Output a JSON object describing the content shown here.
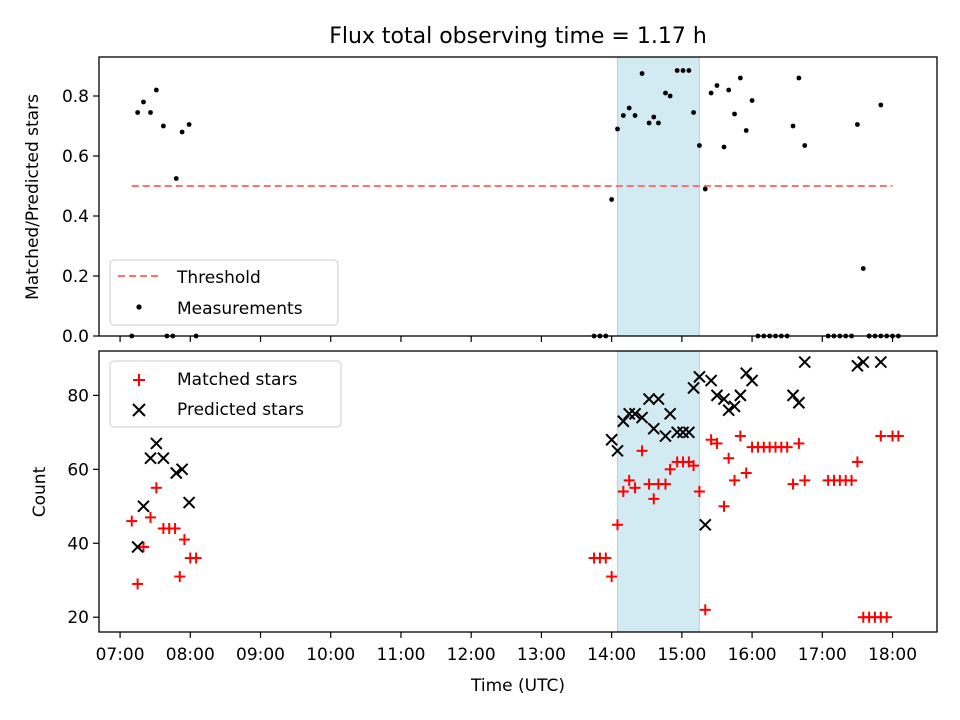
{
  "chart_data": [
    {
      "type": "scatter",
      "title": "Flux total observing time = 1.17 h",
      "ylabel": "Matched/Predicted stars",
      "xlim": [
        "06:42",
        "18:38"
      ],
      "ylim": [
        0,
        0.93
      ],
      "yticks": [
        0.0,
        0.2,
        0.4,
        0.6,
        0.8
      ],
      "ytick_labels": [
        "0.0",
        "0.2",
        "0.4",
        "0.6",
        "0.8"
      ],
      "highlight_span": [
        "14:05",
        "15:15"
      ],
      "legend": {
        "position": "lower-left",
        "entries": [
          "Threshold",
          "Measurements"
        ]
      },
      "colors": {
        "threshold": "#ff7070",
        "measurements": "#000000",
        "span": "#add8e6"
      },
      "threshold": {
        "name": "Threshold",
        "y": 0.5,
        "x": [
          "07:10",
          "18:00"
        ]
      },
      "series": [
        {
          "name": "Measurements",
          "points": [
            [
              "07:10",
              0.0
            ],
            [
              "07:15",
              0.745
            ],
            [
              "07:20",
              0.78
            ],
            [
              "07:26",
              0.745
            ],
            [
              "07:31",
              0.82
            ],
            [
              "07:37",
              0.7
            ],
            [
              "07:40",
              0.0
            ],
            [
              "07:45",
              0.0
            ],
            [
              "07:48",
              0.525
            ],
            [
              "07:53",
              0.68
            ],
            [
              "07:59",
              0.705
            ],
            [
              "08:05",
              0.0
            ],
            [
              "13:45",
              0.0
            ],
            [
              "13:50",
              0.0
            ],
            [
              "13:55",
              0.0
            ],
            [
              "14:00",
              0.455
            ],
            [
              "14:05",
              0.69
            ],
            [
              "14:10",
              0.735
            ],
            [
              "14:15",
              0.76
            ],
            [
              "14:20",
              0.735
            ],
            [
              "14:26",
              0.875
            ],
            [
              "14:32",
              0.71
            ],
            [
              "14:36",
              0.73
            ],
            [
              "14:40",
              0.71
            ],
            [
              "14:46",
              0.81
            ],
            [
              "14:50",
              0.8
            ],
            [
              "14:56",
              0.885
            ],
            [
              "15:01",
              0.885
            ],
            [
              "15:06",
              0.885
            ],
            [
              "15:10",
              0.745
            ],
            [
              "15:15",
              0.635
            ],
            [
              "15:20",
              0.49
            ],
            [
              "15:25",
              0.81
            ],
            [
              "15:30",
              0.835
            ],
            [
              "15:36",
              0.63
            ],
            [
              "15:40",
              0.82
            ],
            [
              "15:45",
              0.74
            ],
            [
              "15:50",
              0.86
            ],
            [
              "15:55",
              0.685
            ],
            [
              "16:00",
              0.785
            ],
            [
              "16:05",
              0.0
            ],
            [
              "16:10",
              0.0
            ],
            [
              "16:15",
              0.0
            ],
            [
              "16:20",
              0.0
            ],
            [
              "16:25",
              0.0
            ],
            [
              "16:30",
              0.0
            ],
            [
              "16:35",
              0.7
            ],
            [
              "16:40",
              0.86
            ],
            [
              "16:45",
              0.635
            ],
            [
              "17:05",
              0.0
            ],
            [
              "17:10",
              0.0
            ],
            [
              "17:15",
              0.0
            ],
            [
              "17:20",
              0.0
            ],
            [
              "17:25",
              0.0
            ],
            [
              "17:30",
              0.705
            ],
            [
              "17:35",
              0.225
            ],
            [
              "17:40",
              0.0
            ],
            [
              "17:45",
              0.0
            ],
            [
              "17:50",
              0.0
            ],
            [
              "17:55",
              0.0
            ],
            [
              "17:40",
              0.0
            ],
            [
              "17:50",
              0.77
            ],
            [
              "18:00",
              0.0
            ],
            [
              "18:05",
              0.0
            ]
          ]
        }
      ]
    },
    {
      "type": "scatter",
      "ylabel": "Count",
      "xlabel": "Time (UTC)",
      "xlim": [
        "06:42",
        "18:38"
      ],
      "ylim": [
        16,
        92
      ],
      "yticks": [
        20,
        40,
        60,
        80
      ],
      "ytick_labels": [
        "20",
        "40",
        "60",
        "80"
      ],
      "xticks": [
        "07:00",
        "08:00",
        "09:00",
        "10:00",
        "11:00",
        "12:00",
        "13:00",
        "14:00",
        "15:00",
        "16:00",
        "17:00",
        "18:00"
      ],
      "highlight_span": [
        "14:05",
        "15:15"
      ],
      "legend": {
        "position": "top-left",
        "entries": [
          "Matched stars",
          "Predicted stars"
        ]
      },
      "colors": {
        "matched": "#ff0000",
        "predicted": "#000000",
        "span": "#add8e6"
      },
      "series": [
        {
          "name": "Matched stars",
          "marker": "plus",
          "points": [
            [
              "07:10",
              46
            ],
            [
              "07:15",
              29
            ],
            [
              "07:20",
              39
            ],
            [
              "07:26",
              47
            ],
            [
              "07:31",
              55
            ],
            [
              "07:37",
              44
            ],
            [
              "07:42",
              44
            ],
            [
              "07:47",
              44
            ],
            [
              "07:51",
              31
            ],
            [
              "07:55",
              41
            ],
            [
              "08:00",
              36
            ],
            [
              "08:05",
              36
            ],
            [
              "13:45",
              36
            ],
            [
              "13:50",
              36
            ],
            [
              "13:55",
              36
            ],
            [
              "14:00",
              31
            ],
            [
              "14:05",
              45
            ],
            [
              "14:10",
              54
            ],
            [
              "14:15",
              57
            ],
            [
              "14:20",
              55
            ],
            [
              "14:26",
              65
            ],
            [
              "14:32",
              56
            ],
            [
              "14:36",
              52
            ],
            [
              "14:40",
              56
            ],
            [
              "14:46",
              56
            ],
            [
              "14:50",
              60
            ],
            [
              "14:56",
              62
            ],
            [
              "15:01",
              62
            ],
            [
              "15:06",
              62
            ],
            [
              "15:10",
              61
            ],
            [
              "15:15",
              54
            ],
            [
              "15:20",
              22
            ],
            [
              "15:25",
              68
            ],
            [
              "15:30",
              67
            ],
            [
              "15:36",
              50
            ],
            [
              "15:40",
              63
            ],
            [
              "15:45",
              57
            ],
            [
              "15:50",
              69
            ],
            [
              "15:55",
              59
            ],
            [
              "16:00",
              66
            ],
            [
              "16:05",
              66
            ],
            [
              "16:10",
              66
            ],
            [
              "16:15",
              66
            ],
            [
              "16:20",
              66
            ],
            [
              "16:25",
              66
            ],
            [
              "16:30",
              66
            ],
            [
              "16:35",
              56
            ],
            [
              "16:40",
              67
            ],
            [
              "16:45",
              57
            ],
            [
              "17:05",
              57
            ],
            [
              "17:10",
              57
            ],
            [
              "17:15",
              57
            ],
            [
              "17:20",
              57
            ],
            [
              "17:25",
              57
            ],
            [
              "17:30",
              62
            ],
            [
              "17:35",
              20
            ],
            [
              "17:40",
              20
            ],
            [
              "17:45",
              20
            ],
            [
              "17:50",
              20
            ],
            [
              "17:55",
              20
            ],
            [
              "17:50",
              69
            ],
            [
              "18:00",
              69
            ],
            [
              "18:05",
              69
            ]
          ]
        },
        {
          "name": "Predicted stars",
          "marker": "x",
          "points": [
            [
              "07:15",
              39
            ],
            [
              "07:20",
              50
            ],
            [
              "07:26",
              63
            ],
            [
              "07:31",
              67
            ],
            [
              "07:37",
              63
            ],
            [
              "07:48",
              59
            ],
            [
              "07:53",
              60
            ],
            [
              "07:59",
              51
            ],
            [
              "14:00",
              68
            ],
            [
              "14:05",
              65
            ],
            [
              "14:10",
              73
            ],
            [
              "14:15",
              75
            ],
            [
              "14:20",
              75
            ],
            [
              "14:26",
              74
            ],
            [
              "14:32",
              79
            ],
            [
              "14:36",
              71
            ],
            [
              "14:40",
              79
            ],
            [
              "14:46",
              69
            ],
            [
              "14:50",
              75
            ],
            [
              "14:56",
              70
            ],
            [
              "15:01",
              70
            ],
            [
              "15:06",
              70
            ],
            [
              "15:10",
              82
            ],
            [
              "15:15",
              85
            ],
            [
              "15:20",
              45
            ],
            [
              "15:25",
              84
            ],
            [
              "15:30",
              80
            ],
            [
              "15:36",
              79
            ],
            [
              "15:40",
              76
            ],
            [
              "15:45",
              77
            ],
            [
              "15:50",
              80
            ],
            [
              "15:55",
              86
            ],
            [
              "16:00",
              84
            ],
            [
              "16:35",
              80
            ],
            [
              "16:40",
              78
            ],
            [
              "16:45",
              89
            ],
            [
              "17:30",
              88
            ],
            [
              "17:35",
              89
            ],
            [
              "17:50",
              89
            ]
          ]
        }
      ]
    }
  ]
}
